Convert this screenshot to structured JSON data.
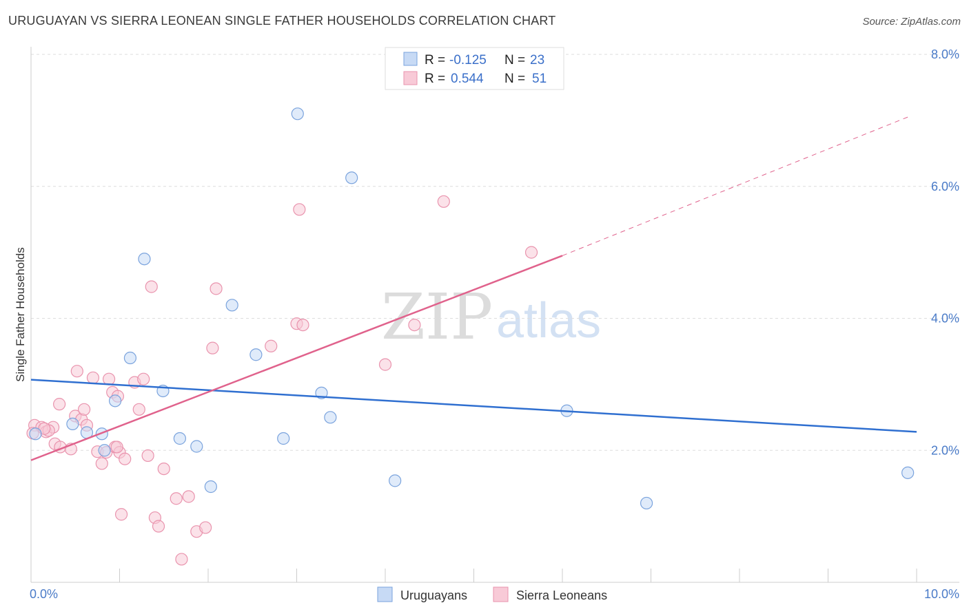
{
  "header": {
    "title": "URUGUAYAN VS SIERRA LEONEAN SINGLE FATHER HOUSEHOLDS CORRELATION CHART",
    "source": "Source: ZipAtlas.com"
  },
  "watermark": {
    "zip": "ZIP",
    "atlas": "atlas"
  },
  "colors": {
    "blue_fill": "#c7daf5",
    "blue_stroke": "#7aa3dd",
    "blue_line": "#2f6fd0",
    "pink_fill": "#f8cad7",
    "pink_stroke": "#e993ad",
    "pink_line": "#e0628c",
    "grid": "#dddddd",
    "axis": "#cccccc"
  },
  "legend": {
    "rows": [
      {
        "r_label": "R =",
        "r_value": "-0.125",
        "n_label": "N =",
        "n_value": "23"
      },
      {
        "r_label": "R =",
        "r_value": "0.544",
        "n_label": "N =",
        "n_value": "51"
      }
    ]
  },
  "chart_data": {
    "type": "scatter",
    "title": "URUGUAYAN VS SIERRA LEONEAN SINGLE FATHER HOUSEHOLDS CORRELATION CHART",
    "xlabel": "",
    "ylabel": "Single Father Households",
    "xlim": [
      0,
      10
    ],
    "ylim": [
      0,
      8.4
    ],
    "x_tick_labels": [
      "0.0%",
      "10.0%"
    ],
    "y_ticks": [
      2,
      4,
      6,
      8
    ],
    "y_tick_labels": [
      "2.0%",
      "4.0%",
      "6.0%",
      "8.0%"
    ],
    "legend_position": "top-center",
    "series": [
      {
        "name": "Uruguayans",
        "points": [
          [
            0.05,
            2.25
          ],
          [
            0.47,
            2.4
          ],
          [
            0.63,
            2.27
          ],
          [
            0.8,
            2.25
          ],
          [
            0.95,
            2.75
          ],
          [
            0.83,
            2.0
          ],
          [
            1.28,
            4.9
          ],
          [
            1.12,
            3.4
          ],
          [
            1.49,
            2.9
          ],
          [
            1.68,
            2.18
          ],
          [
            1.87,
            2.06
          ],
          [
            2.27,
            4.2
          ],
          [
            2.03,
            1.45
          ],
          [
            2.54,
            3.45
          ],
          [
            2.85,
            2.18
          ],
          [
            3.01,
            7.1
          ],
          [
            3.28,
            2.87
          ],
          [
            3.38,
            2.5
          ],
          [
            3.62,
            6.13
          ],
          [
            4.11,
            1.54
          ],
          [
            6.05,
            2.6
          ],
          [
            6.95,
            1.2
          ],
          [
            9.9,
            1.66
          ]
        ],
        "trend": {
          "x": [
            0,
            10
          ],
          "y": [
            3.07,
            2.28
          ],
          "style": "solid"
        }
      },
      {
        "name": "Sierra Leoneans",
        "points": [
          [
            0.04,
            2.38
          ],
          [
            0.12,
            2.35
          ],
          [
            0.17,
            2.28
          ],
          [
            0.25,
            2.35
          ],
          [
            0.27,
            2.1
          ],
          [
            0.2,
            2.3
          ],
          [
            0.33,
            2.05
          ],
          [
            0.32,
            2.7
          ],
          [
            0.45,
            2.02
          ],
          [
            0.5,
            2.52
          ],
          [
            0.57,
            2.47
          ],
          [
            0.6,
            2.62
          ],
          [
            0.52,
            3.2
          ],
          [
            0.63,
            2.38
          ],
          [
            0.7,
            3.1
          ],
          [
            0.75,
            1.98
          ],
          [
            0.8,
            1.8
          ],
          [
            0.85,
            1.97
          ],
          [
            0.88,
            3.08
          ],
          [
            0.92,
            2.88
          ],
          [
            0.95,
            2.05
          ],
          [
            0.98,
            2.82
          ],
          [
            1.0,
            1.97
          ],
          [
            1.06,
            1.87
          ],
          [
            1.02,
            1.03
          ],
          [
            1.17,
            3.03
          ],
          [
            1.22,
            2.62
          ],
          [
            1.27,
            3.08
          ],
          [
            1.32,
            1.92
          ],
          [
            1.36,
            4.48
          ],
          [
            1.4,
            0.98
          ],
          [
            1.44,
            0.85
          ],
          [
            1.5,
            1.72
          ],
          [
            1.64,
            1.27
          ],
          [
            1.7,
            0.35
          ],
          [
            1.78,
            1.3
          ],
          [
            1.87,
            0.77
          ],
          [
            1.97,
            0.83
          ],
          [
            2.05,
            3.55
          ],
          [
            2.09,
            4.45
          ],
          [
            2.71,
            3.58
          ],
          [
            3.0,
            3.92
          ],
          [
            3.03,
            5.65
          ],
          [
            3.07,
            3.9
          ],
          [
            4.0,
            3.3
          ],
          [
            4.33,
            3.9
          ],
          [
            4.66,
            5.77
          ],
          [
            5.65,
            5.0
          ],
          [
            0.02,
            2.26
          ],
          [
            0.15,
            2.33
          ],
          [
            0.97,
            2.05
          ]
        ],
        "trend_solid": {
          "x": [
            0,
            6.0
          ],
          "y": [
            1.85,
            4.95
          ],
          "style": "solid"
        },
        "trend_dashed": {
          "x": [
            6.0,
            9.9
          ],
          "y": [
            4.95,
            7.05
          ],
          "style": "dashed"
        }
      }
    ]
  }
}
